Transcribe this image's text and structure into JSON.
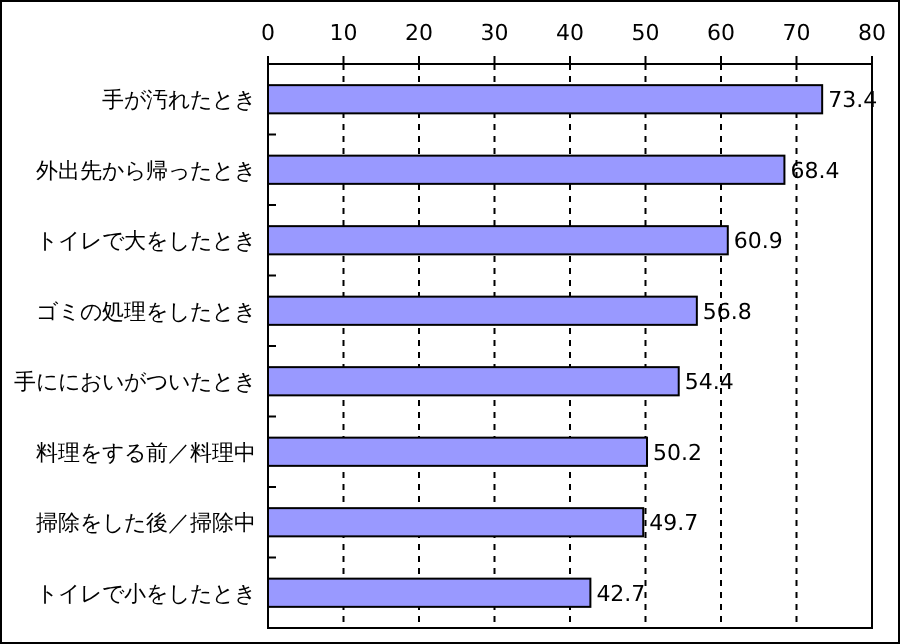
{
  "chart_data": {
    "type": "bar",
    "orientation": "horizontal",
    "categories": [
      "手が汚れたとき",
      "外出先から帰ったとき",
      "トイレで大をしたとき",
      "ゴミの処理をしたとき",
      "手ににおいがついたとき",
      "料理をする前／料理中",
      "掃除をした後／掃除中",
      "トイレで小をしたとき"
    ],
    "values": [
      73.4,
      68.4,
      60.9,
      56.8,
      54.4,
      50.2,
      49.7,
      42.7
    ],
    "color": "#9999ff",
    "xlim": [
      0,
      80
    ],
    "xticks": [
      0,
      10,
      20,
      30,
      40,
      50,
      60,
      70,
      80
    ],
    "grid": "x",
    "data_labels": true
  }
}
